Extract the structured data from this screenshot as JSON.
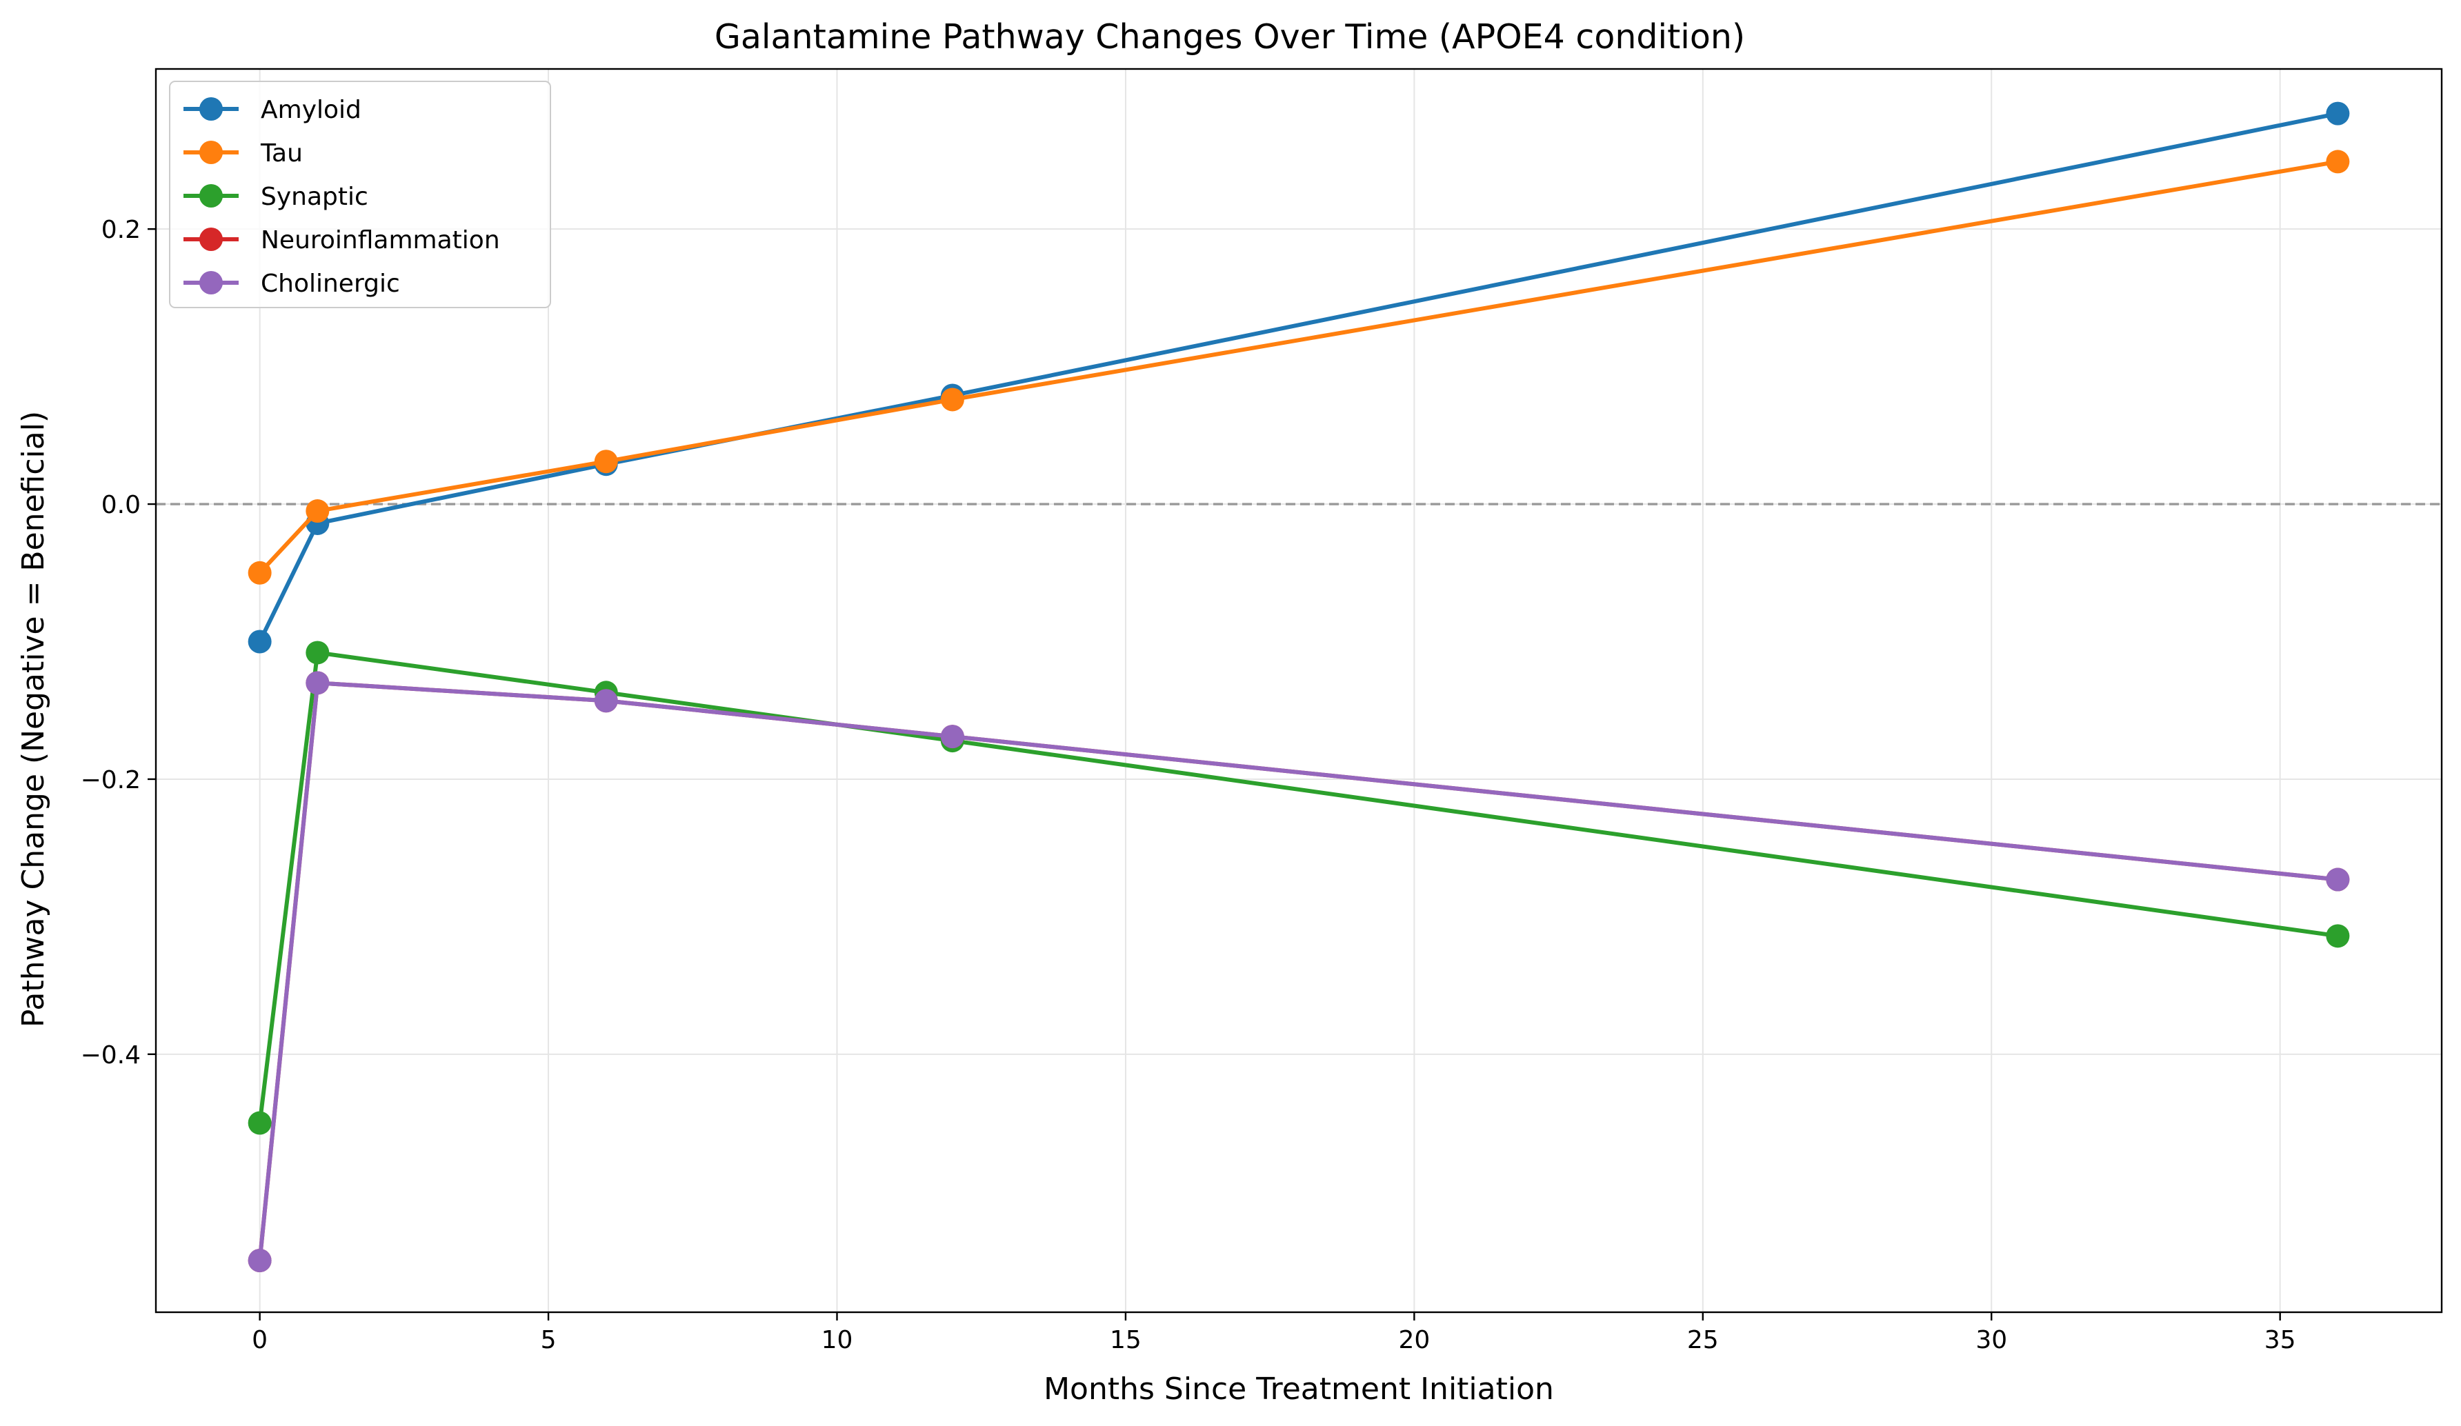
{
  "chart_data": {
    "type": "line",
    "title": "Galantamine Pathway Changes Over Time (APOE4 condition)",
    "xlabel": "Months Since Treatment Initiation",
    "ylabel": "Pathway Change (Negative = Beneficial)",
    "xlim": [
      -1.8,
      37.8
    ],
    "ylim": [
      -0.5876,
      0.3164
    ],
    "xticks": [
      0,
      5,
      10,
      15,
      20,
      25,
      30,
      35
    ],
    "xtick_labels": [
      "0",
      "5",
      "10",
      "15",
      "20",
      "25",
      "30",
      "35"
    ],
    "yticks": [
      -0.4,
      -0.2,
      0.0,
      0.2
    ],
    "ytick_labels": [
      "−0.4",
      "−0.2",
      "0.0",
      "0.2"
    ],
    "grid": true,
    "reference_line": {
      "y": 0.0,
      "style": "dashed",
      "color": "#999999"
    },
    "legend_position": "upper left",
    "x": [
      0,
      1,
      6,
      12,
      36
    ],
    "series": [
      {
        "name": "Amyloid",
        "color": "#1f77b4",
        "values": [
          -0.1,
          -0.014,
          0.029,
          0.079,
          0.284
        ]
      },
      {
        "name": "Tau",
        "color": "#ff7f0e",
        "values": [
          -0.05,
          -0.005,
          0.031,
          0.076,
          0.249
        ]
      },
      {
        "name": "Synaptic",
        "color": "#2ca02c",
        "values": [
          -0.45,
          -0.108,
          -0.137,
          -0.172,
          -0.314
        ]
      },
      {
        "name": "Neuroinflammation",
        "color": "#d62728",
        "values": [
          -0.55,
          -0.13,
          -0.143,
          -0.169,
          -0.273
        ]
      },
      {
        "name": "Cholinergic",
        "color": "#9467bd",
        "values": [
          -0.55,
          -0.13,
          -0.143,
          -0.169,
          -0.273
        ]
      }
    ]
  }
}
